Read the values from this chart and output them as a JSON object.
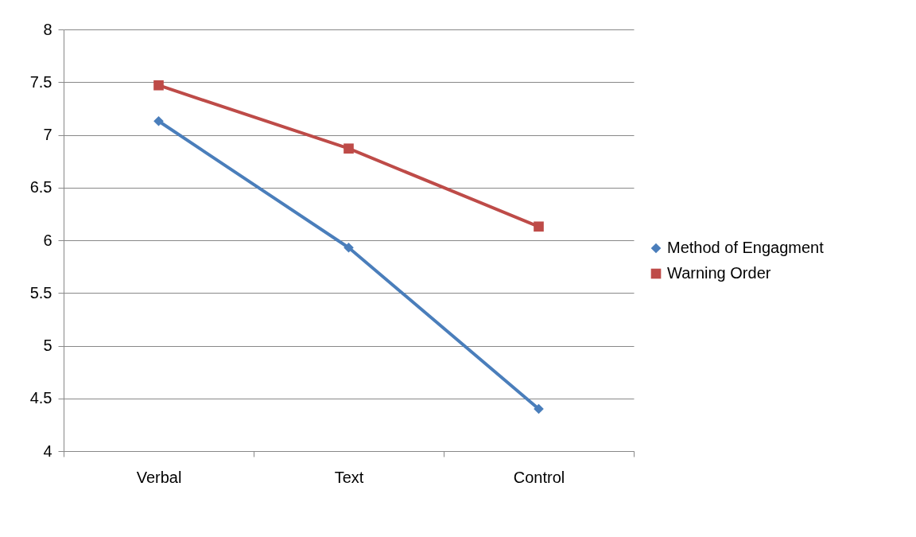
{
  "chart_data": {
    "type": "line",
    "categories": [
      "Verbal",
      "Text",
      "Control"
    ],
    "series": [
      {
        "name": "Method of Engagment",
        "color": "#4a7ebb",
        "marker": "diamond",
        "values": [
          7.13,
          5.93,
          4.4
        ]
      },
      {
        "name": "Warning Order",
        "color": "#be4b48",
        "marker": "square",
        "values": [
          7.47,
          6.87,
          6.13
        ]
      }
    ],
    "ylim": [
      4,
      8
    ],
    "yticks": [
      4,
      4.5,
      5,
      5.5,
      6,
      6.5,
      7,
      7.5,
      8
    ],
    "grid": "y",
    "legend": "right"
  }
}
